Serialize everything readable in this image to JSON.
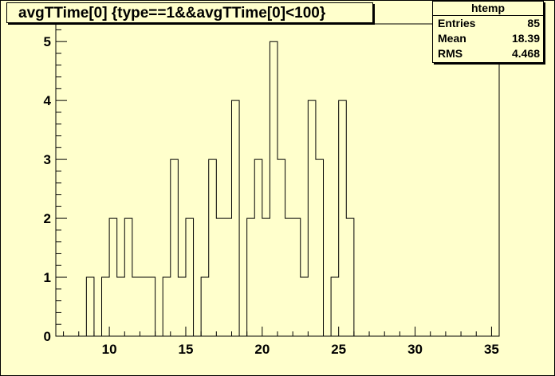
{
  "title": "avgTTime[0] {type==1&&avgTTime[0]<100}",
  "stats": {
    "name": "htemp",
    "rows": [
      {
        "label": "Entries",
        "value": "85"
      },
      {
        "label": "Mean",
        "value": "18.39"
      },
      {
        "label": "RMS",
        "value": "4.468"
      }
    ]
  },
  "colors": {
    "background": "#ffffcc",
    "line": "#000000"
  },
  "chart_data": {
    "type": "bar",
    "style": "step-histogram",
    "xlim": [
      6.5,
      35.5
    ],
    "ylim": [
      0,
      5.3
    ],
    "bin_width": 0.5,
    "x_ticks": [
      10,
      15,
      20,
      25,
      30,
      35
    ],
    "y_ticks": [
      0,
      1,
      2,
      3,
      4,
      5
    ],
    "bins": [
      {
        "x": 8.5,
        "count": 1
      },
      {
        "x": 9.0,
        "count": 0
      },
      {
        "x": 9.5,
        "count": 1
      },
      {
        "x": 10.0,
        "count": 2
      },
      {
        "x": 10.5,
        "count": 1
      },
      {
        "x": 11.0,
        "count": 2
      },
      {
        "x": 11.5,
        "count": 1
      },
      {
        "x": 12.0,
        "count": 1
      },
      {
        "x": 12.5,
        "count": 1
      },
      {
        "x": 13.0,
        "count": 0
      },
      {
        "x": 13.5,
        "count": 1
      },
      {
        "x": 14.0,
        "count": 3
      },
      {
        "x": 14.5,
        "count": 1
      },
      {
        "x": 15.0,
        "count": 2
      },
      {
        "x": 15.5,
        "count": 0
      },
      {
        "x": 16.0,
        "count": 1
      },
      {
        "x": 16.5,
        "count": 3
      },
      {
        "x": 17.0,
        "count": 2
      },
      {
        "x": 17.5,
        "count": 2
      },
      {
        "x": 18.0,
        "count": 4
      },
      {
        "x": 18.5,
        "count": 0
      },
      {
        "x": 19.0,
        "count": 2
      },
      {
        "x": 19.5,
        "count": 3
      },
      {
        "x": 20.0,
        "count": 2
      },
      {
        "x": 20.5,
        "count": 5
      },
      {
        "x": 21.0,
        "count": 3
      },
      {
        "x": 21.5,
        "count": 2
      },
      {
        "x": 22.0,
        "count": 2
      },
      {
        "x": 22.5,
        "count": 1
      },
      {
        "x": 23.0,
        "count": 4
      },
      {
        "x": 23.5,
        "count": 3
      },
      {
        "x": 24.0,
        "count": 0
      },
      {
        "x": 24.5,
        "count": 1
      },
      {
        "x": 25.0,
        "count": 4
      },
      {
        "x": 25.5,
        "count": 2
      },
      {
        "x": 26.0,
        "count": 0
      }
    ]
  }
}
